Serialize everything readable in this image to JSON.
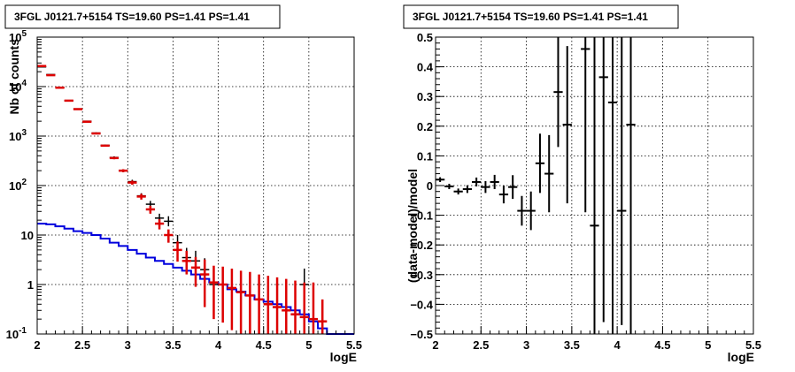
{
  "chart_data": [
    {
      "type": "scatter",
      "title": "3FGL J0121.7+5154 TS=19.60 PS=1.41 PS=1.41",
      "xlabel": "logE",
      "ylabel": "Nb of counts",
      "xlim": [
        2,
        5.5
      ],
      "ylim": [
        0.1,
        100000
      ],
      "yscale": "log",
      "grid": true,
      "x_ticks": [
        "2",
        "2.5",
        "3",
        "3.5",
        "4",
        "4.5",
        "5",
        "5.5"
      ],
      "y_ticks": [
        {
          "value": 0.1,
          "base": "10",
          "exp": "-1"
        },
        {
          "value": 1,
          "base": "1",
          "exp": ""
        },
        {
          "value": 10,
          "base": "10",
          "exp": ""
        },
        {
          "value": 100,
          "base": "10",
          "exp": "2"
        },
        {
          "value": 1000,
          "base": "10",
          "exp": "3"
        },
        {
          "value": 10000,
          "base": "10",
          "exp": "4"
        },
        {
          "value": 100000,
          "base": "10",
          "exp": "5"
        }
      ],
      "bin_width": 0.1,
      "series": [
        {
          "kind": "data",
          "color": "#000000",
          "points": [
            {
              "x": 2.05,
              "y": 25000,
              "lo": 24800,
              "hi": 25200
            },
            {
              "x": 2.15,
              "y": 17500,
              "lo": 17300,
              "hi": 17700
            },
            {
              "x": 2.25,
              "y": 9700,
              "lo": 9550,
              "hi": 9850
            },
            {
              "x": 2.35,
              "y": 5200,
              "lo": 5100,
              "hi": 5300
            },
            {
              "x": 2.45,
              "y": 3550,
              "lo": 3480,
              "hi": 3620
            },
            {
              "x": 2.55,
              "y": 2000,
              "lo": 1950,
              "hi": 2050
            },
            {
              "x": 2.65,
              "y": 1150,
              "lo": 1110,
              "hi": 1190
            },
            {
              "x": 2.75,
              "y": 650,
              "lo": 625,
              "hi": 675
            },
            {
              "x": 2.85,
              "y": 370,
              "lo": 350,
              "hi": 390
            },
            {
              "x": 2.95,
              "y": 200,
              "lo": 186,
              "hi": 214
            },
            {
              "x": 3.05,
              "y": 120,
              "lo": 109,
              "hi": 131
            },
            {
              "x": 3.15,
              "y": 62,
              "lo": 54,
              "hi": 70
            },
            {
              "x": 3.25,
              "y": 42,
              "lo": 36,
              "hi": 49
            },
            {
              "x": 3.35,
              "y": 22,
              "lo": 17,
              "hi": 27
            },
            {
              "x": 3.45,
              "y": 19,
              "lo": 15,
              "hi": 24
            },
            {
              "x": 3.55,
              "y": 7,
              "lo": 4.5,
              "hi": 10
            },
            {
              "x": 3.65,
              "y": 3.5,
              "lo": 2,
              "hi": 5.5
            },
            {
              "x": 3.75,
              "y": 3,
              "lo": 1.6,
              "hi": 4.8
            },
            {
              "x": 3.85,
              "y": 2,
              "lo": 0.9,
              "hi": 3.4
            },
            {
              "x": 3.95,
              "y": 1,
              "lo": 0.3,
              "hi": 2.1
            },
            {
              "x": 4.05,
              "y": 1,
              "lo": 0.3,
              "hi": 2.1
            },
            {
              "x": 4.95,
              "y": 1,
              "lo": 0.3,
              "hi": 2.1
            }
          ]
        },
        {
          "kind": "model",
          "color": "#dd0000",
          "points": [
            {
              "x": 2.05,
              "y": 26000,
              "lo": 26000,
              "hi": 26000
            },
            {
              "x": 2.15,
              "y": 17000,
              "lo": 17000,
              "hi": 17000
            },
            {
              "x": 2.25,
              "y": 9500,
              "lo": 9500,
              "hi": 9500
            },
            {
              "x": 2.35,
              "y": 5200,
              "lo": 5200,
              "hi": 5200
            },
            {
              "x": 2.45,
              "y": 3500,
              "lo": 3500,
              "hi": 3500
            },
            {
              "x": 2.55,
              "y": 1950,
              "lo": 1950,
              "hi": 1950
            },
            {
              "x": 2.65,
              "y": 1130,
              "lo": 1130,
              "hi": 1130
            },
            {
              "x": 2.75,
              "y": 640,
              "lo": 640,
              "hi": 640
            },
            {
              "x": 2.85,
              "y": 360,
              "lo": 340,
              "hi": 380
            },
            {
              "x": 2.95,
              "y": 200,
              "lo": 186,
              "hi": 214
            },
            {
              "x": 3.05,
              "y": 115,
              "lo": 104,
              "hi": 126
            },
            {
              "x": 3.15,
              "y": 60,
              "lo": 52,
              "hi": 68
            },
            {
              "x": 3.25,
              "y": 33,
              "lo": 27,
              "hi": 39
            },
            {
              "x": 3.35,
              "y": 17,
              "lo": 13,
              "hi": 21
            },
            {
              "x": 3.45,
              "y": 10,
              "lo": 7,
              "hi": 13
            },
            {
              "x": 3.55,
              "y": 5,
              "lo": 2.9,
              "hi": 7.4
            },
            {
              "x": 3.65,
              "y": 3,
              "lo": 1.6,
              "hi": 4.8
            },
            {
              "x": 3.75,
              "y": 2.2,
              "lo": 0.9,
              "hi": 3.6
            },
            {
              "x": 3.85,
              "y": 1.6,
              "lo": 0.35,
              "hi": 3.2
            },
            {
              "x": 3.95,
              "y": 1.1,
              "lo": 0.2,
              "hi": 2.4
            },
            {
              "x": 4.05,
              "y": 1,
              "lo": 0.17,
              "hi": 2.3
            },
            {
              "x": 4.15,
              "y": 0.85,
              "lo": 0.12,
              "hi": 2.1
            },
            {
              "x": 4.25,
              "y": 0.7,
              "lo": 0.1,
              "hi": 1.9
            },
            {
              "x": 4.35,
              "y": 0.6,
              "lo": 0.1,
              "hi": 1.8
            },
            {
              "x": 4.45,
              "y": 0.5,
              "lo": 0.1,
              "hi": 1.6
            },
            {
              "x": 4.55,
              "y": 0.4,
              "lo": 0.1,
              "hi": 1.5
            },
            {
              "x": 4.65,
              "y": 0.35,
              "lo": 0.1,
              "hi": 1.4
            },
            {
              "x": 4.75,
              "y": 0.3,
              "lo": 0.1,
              "hi": 1.3
            },
            {
              "x": 4.85,
              "y": 0.25,
              "lo": 0.1,
              "hi": 1.2
            },
            {
              "x": 4.95,
              "y": 0.22,
              "lo": 0.1,
              "hi": 1.1
            },
            {
              "x": 5.05,
              "y": 0.2,
              "lo": 0.1,
              "hi": 1.1
            },
            {
              "x": 5.15,
              "y": 0.18,
              "lo": 0.1,
              "hi": 0.5
            }
          ]
        },
        {
          "kind": "step",
          "color": "#0000dd",
          "edges": [
            2.0,
            2.1,
            2.2,
            2.3,
            2.4,
            2.5,
            2.6,
            2.7,
            2.8,
            2.9,
            3.0,
            3.1,
            3.2,
            3.3,
            3.4,
            3.5,
            3.6,
            3.7,
            3.8,
            3.9,
            4.0,
            4.1,
            4.2,
            4.3,
            4.4,
            4.5,
            4.6,
            4.7,
            4.8,
            4.9,
            5.0,
            5.1,
            5.2,
            5.3,
            5.4,
            5.5
          ],
          "values": [
            17,
            16.5,
            15,
            13.5,
            12,
            11,
            10,
            8.5,
            7,
            6,
            5,
            4.2,
            3.5,
            3.0,
            2.6,
            2.2,
            1.9,
            1.6,
            1.3,
            1.1,
            1.0,
            0.8,
            0.72,
            0.6,
            0.5,
            0.45,
            0.4,
            0.35,
            0.3,
            0.25,
            0.18,
            0.13,
            0.1,
            0.1,
            0.1
          ]
        }
      ]
    },
    {
      "type": "scatter",
      "title": "3FGL J0121.7+5154 TS=19.60 PS=1.41 PS=1.41",
      "xlabel": "logE",
      "ylabel": "(data-model)/model",
      "xlim": [
        2,
        5.5
      ],
      "ylim": [
        -0.5,
        0.5
      ],
      "grid": true,
      "x_ticks": [
        "2",
        "2.5",
        "3",
        "3.5",
        "4",
        "4.5",
        "5",
        "5.5"
      ],
      "y_ticks": [
        "-0.5",
        "-0.4",
        "-0.3",
        "-0.2",
        "-0.1",
        "0",
        "0.1",
        "0.2",
        "0.3",
        "0.4",
        "0.5"
      ],
      "bin_width": 0.1,
      "series": [
        {
          "kind": "residual",
          "color": "#000000",
          "points": [
            {
              "x": 2.05,
              "y": 0.02,
              "lo": 0.012,
              "hi": 0.028
            },
            {
              "x": 2.15,
              "y": -0.003,
              "lo": -0.012,
              "hi": 0.006
            },
            {
              "x": 2.25,
              "y": -0.02,
              "lo": -0.03,
              "hi": -0.01
            },
            {
              "x": 2.35,
              "y": -0.012,
              "lo": -0.025,
              "hi": 0.001
            },
            {
              "x": 2.45,
              "y": 0.012,
              "lo": -0.003,
              "hi": 0.027
            },
            {
              "x": 2.55,
              "y": -0.005,
              "lo": -0.025,
              "hi": 0.015
            },
            {
              "x": 2.65,
              "y": 0.012,
              "lo": -0.012,
              "hi": 0.036
            },
            {
              "x": 2.75,
              "y": -0.03,
              "lo": -0.06,
              "hi": 0.0
            },
            {
              "x": 2.85,
              "y": -0.005,
              "lo": -0.045,
              "hi": 0.035
            },
            {
              "x": 2.95,
              "y": -0.085,
              "lo": -0.135,
              "hi": -0.035
            },
            {
              "x": 3.05,
              "y": -0.085,
              "lo": -0.15,
              "hi": -0.02
            },
            {
              "x": 3.15,
              "y": 0.075,
              "lo": -0.025,
              "hi": 0.175
            },
            {
              "x": 3.25,
              "y": 0.04,
              "lo": -0.09,
              "hi": 0.17
            },
            {
              "x": 3.35,
              "y": 0.315,
              "lo": 0.13,
              "hi": 0.5
            },
            {
              "x": 3.45,
              "y": 0.205,
              "lo": -0.06,
              "hi": 0.47
            },
            {
              "x": 3.65,
              "y": 0.46,
              "lo": -0.09,
              "hi": 0.5
            },
            {
              "x": 3.75,
              "y": -0.135,
              "lo": -0.5,
              "hi": 0.5
            },
            {
              "x": 3.85,
              "y": 0.365,
              "lo": -0.46,
              "hi": 0.5
            },
            {
              "x": 3.95,
              "y": 0.28,
              "lo": -0.5,
              "hi": 0.5
            },
            {
              "x": 4.05,
              "y": -0.085,
              "lo": -0.47,
              "hi": 0.5
            },
            {
              "x": 4.15,
              "y": 0.205,
              "lo": -0.5,
              "hi": 0.5
            }
          ]
        }
      ]
    }
  ]
}
